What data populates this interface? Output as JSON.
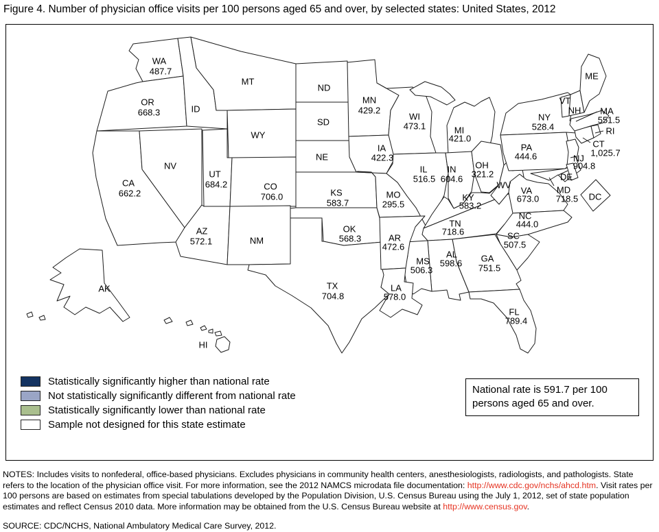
{
  "title": "Figure 4. Number of physician office visits per 100 persons aged 65 and over, by selected states: United States, 2012",
  "legend": {
    "items": [
      {
        "category": "higher",
        "label": "Statistically significantly higher than national rate"
      },
      {
        "category": "not_different",
        "label": "Not statistically significantly different from national rate"
      },
      {
        "category": "lower",
        "label": "Statistically significantly lower than national rate"
      },
      {
        "category": "no_sample",
        "label": "Sample not designed for this state estimate"
      }
    ]
  },
  "national_rate_box": {
    "line1": "National rate is 591.7 per 100",
    "line2": "persons aged 65 and over."
  },
  "notes": {
    "segments": [
      {
        "text": "NOTES: Includes visits to nonfederal, office-based physicians. Excludes physicians in community health centers, anesthesiologists, radiologists, and pathologists. State refers to the location of the physician office visit. For more information, see the 2012 NAMCS microdata file documentation: ",
        "link": false,
        "name": "notes-body-1"
      },
      {
        "text": "http://www.cdc.gov/nchs/ahcd.htm",
        "link": true,
        "name": "cdc-ahcd-link"
      },
      {
        "text": ". Visit rates per 100 persons are based on estimates from special tabulations developed by the Population Division, U.S. Census Bureau using the July 1, 2012, set of state population estimates and reflect Census 2010 data. More information may be obtained from the U.S. Census Bureau website at ",
        "link": false,
        "name": "notes-body-2"
      },
      {
        "text": "http://www.census.gov",
        "link": true,
        "name": "census-link"
      },
      {
        "text": ".",
        "link": false,
        "name": "notes-body-3"
      }
    ]
  },
  "source": "SOURCE: CDC/NCHS, National Ambulatory Medical Care Survey, 2012.",
  "chart_data": {
    "type": "heatmap",
    "subtype": "us-state-choropleth",
    "title": "Number of physician office visits per 100 persons aged 65 and over, by selected states: United States, 2012",
    "unit": "visits per 100 persons aged 65 and over",
    "national_rate": 591.7,
    "legend_position": "bottom-left",
    "category_colors": {
      "higher": "#143361",
      "not_different": "#9aa5c6",
      "lower": "#aabf8e",
      "no_sample": "#ffffff"
    },
    "link_color": "#e53322",
    "states": {
      "WA": {
        "abbr": "WA",
        "value": 487.7,
        "display": "487.7",
        "category": "not_different"
      },
      "OR": {
        "abbr": "OR",
        "value": 668.3,
        "display": "668.3",
        "category": "not_different"
      },
      "CA": {
        "abbr": "CA",
        "value": 662.2,
        "display": "662.2",
        "category": "not_different"
      },
      "NV": {
        "abbr": "NV",
        "value": null,
        "display": "",
        "category": "no_sample"
      },
      "ID": {
        "abbr": "ID",
        "value": null,
        "display": "",
        "category": "no_sample"
      },
      "MT": {
        "abbr": "MT",
        "value": null,
        "display": "",
        "category": "no_sample"
      },
      "WY": {
        "abbr": "WY",
        "value": null,
        "display": "",
        "category": "no_sample"
      },
      "UT": {
        "abbr": "UT",
        "value": 684.2,
        "display": "684.2",
        "category": "not_different"
      },
      "CO": {
        "abbr": "CO",
        "value": 706.0,
        "display": "706.0",
        "category": "not_different"
      },
      "AZ": {
        "abbr": "AZ",
        "value": 572.1,
        "display": "572.1",
        "category": "not_different"
      },
      "NM": {
        "abbr": "NM",
        "value": null,
        "display": "",
        "category": "no_sample"
      },
      "ND": {
        "abbr": "ND",
        "value": null,
        "display": "",
        "category": "no_sample"
      },
      "SD": {
        "abbr": "SD",
        "value": null,
        "display": "",
        "category": "no_sample"
      },
      "NE": {
        "abbr": "NE",
        "value": null,
        "display": "",
        "category": "no_sample"
      },
      "KS": {
        "abbr": "KS",
        "value": 583.7,
        "display": "583.7",
        "category": "not_different"
      },
      "OK": {
        "abbr": "OK",
        "value": 568.3,
        "display": "568.3",
        "category": "not_different"
      },
      "TX": {
        "abbr": "TX",
        "value": 704.8,
        "display": "704.8",
        "category": "not_different"
      },
      "MN": {
        "abbr": "MN",
        "value": 429.2,
        "display": "429.2",
        "category": "lower"
      },
      "IA": {
        "abbr": "IA",
        "value": 422.3,
        "display": "422.3",
        "category": "lower"
      },
      "MO": {
        "abbr": "MO",
        "value": 295.5,
        "display": "295.5",
        "category": "lower"
      },
      "AR": {
        "abbr": "AR",
        "value": 472.6,
        "display": "472.6",
        "category": "lower"
      },
      "LA": {
        "abbr": "LA",
        "value": 578.0,
        "display": "578.0",
        "category": "not_different"
      },
      "WI": {
        "abbr": "WI",
        "value": 473.1,
        "display": "473.1",
        "category": "lower"
      },
      "IL": {
        "abbr": "IL",
        "value": 516.5,
        "display": "516.5",
        "category": "not_different"
      },
      "MI": {
        "abbr": "MI",
        "value": 421.0,
        "display": "421.0",
        "category": "lower"
      },
      "IN": {
        "abbr": "IN",
        "value": 604.6,
        "display": "604.6",
        "category": "not_different"
      },
      "OH": {
        "abbr": "OH",
        "value": 321.2,
        "display": "321.2",
        "category": "lower"
      },
      "KY": {
        "abbr": "KY",
        "value": 583.2,
        "display": "583.2",
        "category": "not_different"
      },
      "TN": {
        "abbr": "TN",
        "value": 718.6,
        "display": "718.6",
        "category": "not_different"
      },
      "MS": {
        "abbr": "MS",
        "value": 506.3,
        "display": "506.3",
        "category": "not_different"
      },
      "AL": {
        "abbr": "AL",
        "value": 598.6,
        "display": "598.6",
        "category": "not_different"
      },
      "GA": {
        "abbr": "GA",
        "value": 751.5,
        "display": "751.5",
        "category": "not_different"
      },
      "FL": {
        "abbr": "FL",
        "value": 789.4,
        "display": "789.4",
        "category": "not_different"
      },
      "SC": {
        "abbr": "SC",
        "value": 507.5,
        "display": "507.5",
        "category": "not_different"
      },
      "NC": {
        "abbr": "NC",
        "value": 444.0,
        "display": "444.0",
        "category": "not_different"
      },
      "VA": {
        "abbr": "VA",
        "value": 673.0,
        "display": "673.0",
        "category": "not_different"
      },
      "WV": {
        "abbr": "WV",
        "value": null,
        "display": "",
        "category": "no_sample"
      },
      "PA": {
        "abbr": "PA",
        "value": 444.6,
        "display": "444.6",
        "category": "lower"
      },
      "NY": {
        "abbr": "NY",
        "value": 528.4,
        "display": "528.4",
        "category": "not_different"
      },
      "NJ": {
        "abbr": "NJ",
        "value": 904.8,
        "display": "904.8",
        "category": "higher"
      },
      "CT": {
        "abbr": "CT",
        "value": 1025.7,
        "display": "1,025.7",
        "category": "higher"
      },
      "RI": {
        "abbr": "RI",
        "value": null,
        "display": "",
        "category": "no_sample"
      },
      "MA": {
        "abbr": "MA",
        "value": 551.5,
        "display": "551.5",
        "category": "not_different"
      },
      "VT": {
        "abbr": "VT",
        "value": null,
        "display": "",
        "category": "no_sample"
      },
      "NH": {
        "abbr": "NH",
        "value": null,
        "display": "",
        "category": "no_sample"
      },
      "ME": {
        "abbr": "ME",
        "value": null,
        "display": "",
        "category": "no_sample"
      },
      "MD": {
        "abbr": "MD",
        "value": 718.5,
        "display": "718.5",
        "category": "not_different"
      },
      "DE": {
        "abbr": "DE",
        "value": null,
        "display": "",
        "category": "not_different"
      },
      "DC": {
        "abbr": "DC",
        "value": null,
        "display": "",
        "category": "no_sample"
      },
      "AK": {
        "abbr": "AK",
        "value": null,
        "display": "",
        "category": "no_sample"
      },
      "HI": {
        "abbr": "HI",
        "value": null,
        "display": "",
        "category": "no_sample"
      }
    }
  }
}
